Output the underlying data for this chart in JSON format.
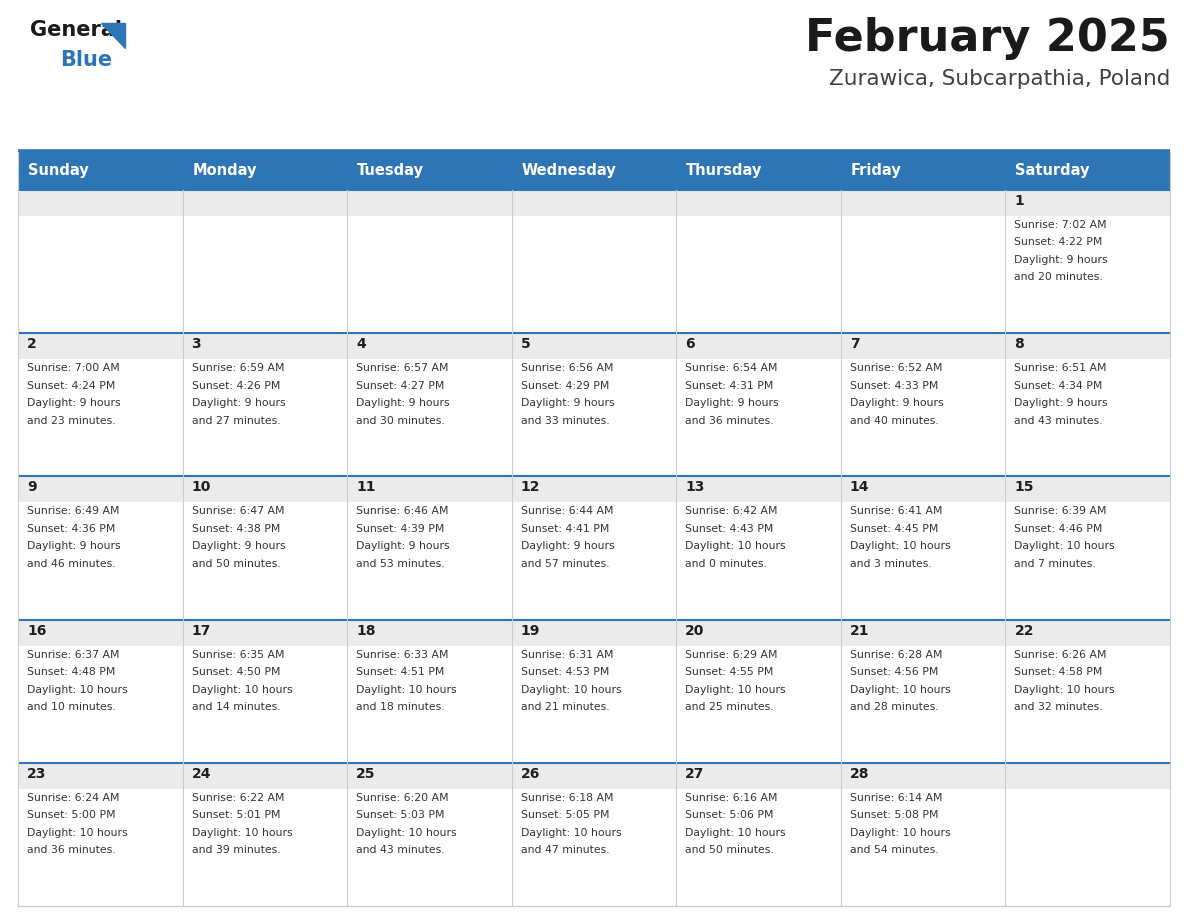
{
  "title": "February 2025",
  "subtitle": "Zurawica, Subcarpathia, Poland",
  "header_bg": "#2E75B6",
  "header_text_color": "#FFFFFF",
  "cell_top_bg": "#EBEBEB",
  "cell_body_bg": "#FFFFFF",
  "day_number_color": "#1F1F1F",
  "cell_text_color": "#333333",
  "row_separator_color": "#2E75B6",
  "col_separator_color": "#CCCCCC",
  "days_of_week": [
    "Sunday",
    "Monday",
    "Tuesday",
    "Wednesday",
    "Thursday",
    "Friday",
    "Saturday"
  ],
  "weeks": [
    [
      {
        "day": "",
        "info": ""
      },
      {
        "day": "",
        "info": ""
      },
      {
        "day": "",
        "info": ""
      },
      {
        "day": "",
        "info": ""
      },
      {
        "day": "",
        "info": ""
      },
      {
        "day": "",
        "info": ""
      },
      {
        "day": "1",
        "info": "Sunrise: 7:02 AM\nSunset: 4:22 PM\nDaylight: 9 hours\nand 20 minutes."
      }
    ],
    [
      {
        "day": "2",
        "info": "Sunrise: 7:00 AM\nSunset: 4:24 PM\nDaylight: 9 hours\nand 23 minutes."
      },
      {
        "day": "3",
        "info": "Sunrise: 6:59 AM\nSunset: 4:26 PM\nDaylight: 9 hours\nand 27 minutes."
      },
      {
        "day": "4",
        "info": "Sunrise: 6:57 AM\nSunset: 4:27 PM\nDaylight: 9 hours\nand 30 minutes."
      },
      {
        "day": "5",
        "info": "Sunrise: 6:56 AM\nSunset: 4:29 PM\nDaylight: 9 hours\nand 33 minutes."
      },
      {
        "day": "6",
        "info": "Sunrise: 6:54 AM\nSunset: 4:31 PM\nDaylight: 9 hours\nand 36 minutes."
      },
      {
        "day": "7",
        "info": "Sunrise: 6:52 AM\nSunset: 4:33 PM\nDaylight: 9 hours\nand 40 minutes."
      },
      {
        "day": "8",
        "info": "Sunrise: 6:51 AM\nSunset: 4:34 PM\nDaylight: 9 hours\nand 43 minutes."
      }
    ],
    [
      {
        "day": "9",
        "info": "Sunrise: 6:49 AM\nSunset: 4:36 PM\nDaylight: 9 hours\nand 46 minutes."
      },
      {
        "day": "10",
        "info": "Sunrise: 6:47 AM\nSunset: 4:38 PM\nDaylight: 9 hours\nand 50 minutes."
      },
      {
        "day": "11",
        "info": "Sunrise: 6:46 AM\nSunset: 4:39 PM\nDaylight: 9 hours\nand 53 minutes."
      },
      {
        "day": "12",
        "info": "Sunrise: 6:44 AM\nSunset: 4:41 PM\nDaylight: 9 hours\nand 57 minutes."
      },
      {
        "day": "13",
        "info": "Sunrise: 6:42 AM\nSunset: 4:43 PM\nDaylight: 10 hours\nand 0 minutes."
      },
      {
        "day": "14",
        "info": "Sunrise: 6:41 AM\nSunset: 4:45 PM\nDaylight: 10 hours\nand 3 minutes."
      },
      {
        "day": "15",
        "info": "Sunrise: 6:39 AM\nSunset: 4:46 PM\nDaylight: 10 hours\nand 7 minutes."
      }
    ],
    [
      {
        "day": "16",
        "info": "Sunrise: 6:37 AM\nSunset: 4:48 PM\nDaylight: 10 hours\nand 10 minutes."
      },
      {
        "day": "17",
        "info": "Sunrise: 6:35 AM\nSunset: 4:50 PM\nDaylight: 10 hours\nand 14 minutes."
      },
      {
        "day": "18",
        "info": "Sunrise: 6:33 AM\nSunset: 4:51 PM\nDaylight: 10 hours\nand 18 minutes."
      },
      {
        "day": "19",
        "info": "Sunrise: 6:31 AM\nSunset: 4:53 PM\nDaylight: 10 hours\nand 21 minutes."
      },
      {
        "day": "20",
        "info": "Sunrise: 6:29 AM\nSunset: 4:55 PM\nDaylight: 10 hours\nand 25 minutes."
      },
      {
        "day": "21",
        "info": "Sunrise: 6:28 AM\nSunset: 4:56 PM\nDaylight: 10 hours\nand 28 minutes."
      },
      {
        "day": "22",
        "info": "Sunrise: 6:26 AM\nSunset: 4:58 PM\nDaylight: 10 hours\nand 32 minutes."
      }
    ],
    [
      {
        "day": "23",
        "info": "Sunrise: 6:24 AM\nSunset: 5:00 PM\nDaylight: 10 hours\nand 36 minutes."
      },
      {
        "day": "24",
        "info": "Sunrise: 6:22 AM\nSunset: 5:01 PM\nDaylight: 10 hours\nand 39 minutes."
      },
      {
        "day": "25",
        "info": "Sunrise: 6:20 AM\nSunset: 5:03 PM\nDaylight: 10 hours\nand 43 minutes."
      },
      {
        "day": "26",
        "info": "Sunrise: 6:18 AM\nSunset: 5:05 PM\nDaylight: 10 hours\nand 47 minutes."
      },
      {
        "day": "27",
        "info": "Sunrise: 6:16 AM\nSunset: 5:06 PM\nDaylight: 10 hours\nand 50 minutes."
      },
      {
        "day": "28",
        "info": "Sunrise: 6:14 AM\nSunset: 5:08 PM\nDaylight: 10 hours\nand 54 minutes."
      },
      {
        "day": "",
        "info": ""
      }
    ]
  ],
  "logo_general_color": "#1A1A1A",
  "logo_blue_color": "#2E75B6",
  "title_color": "#1A1A1A",
  "subtitle_color": "#404040",
  "separator_line_color": "#2E75B6",
  "fig_width": 11.88,
  "fig_height": 9.18,
  "dpi": 100
}
